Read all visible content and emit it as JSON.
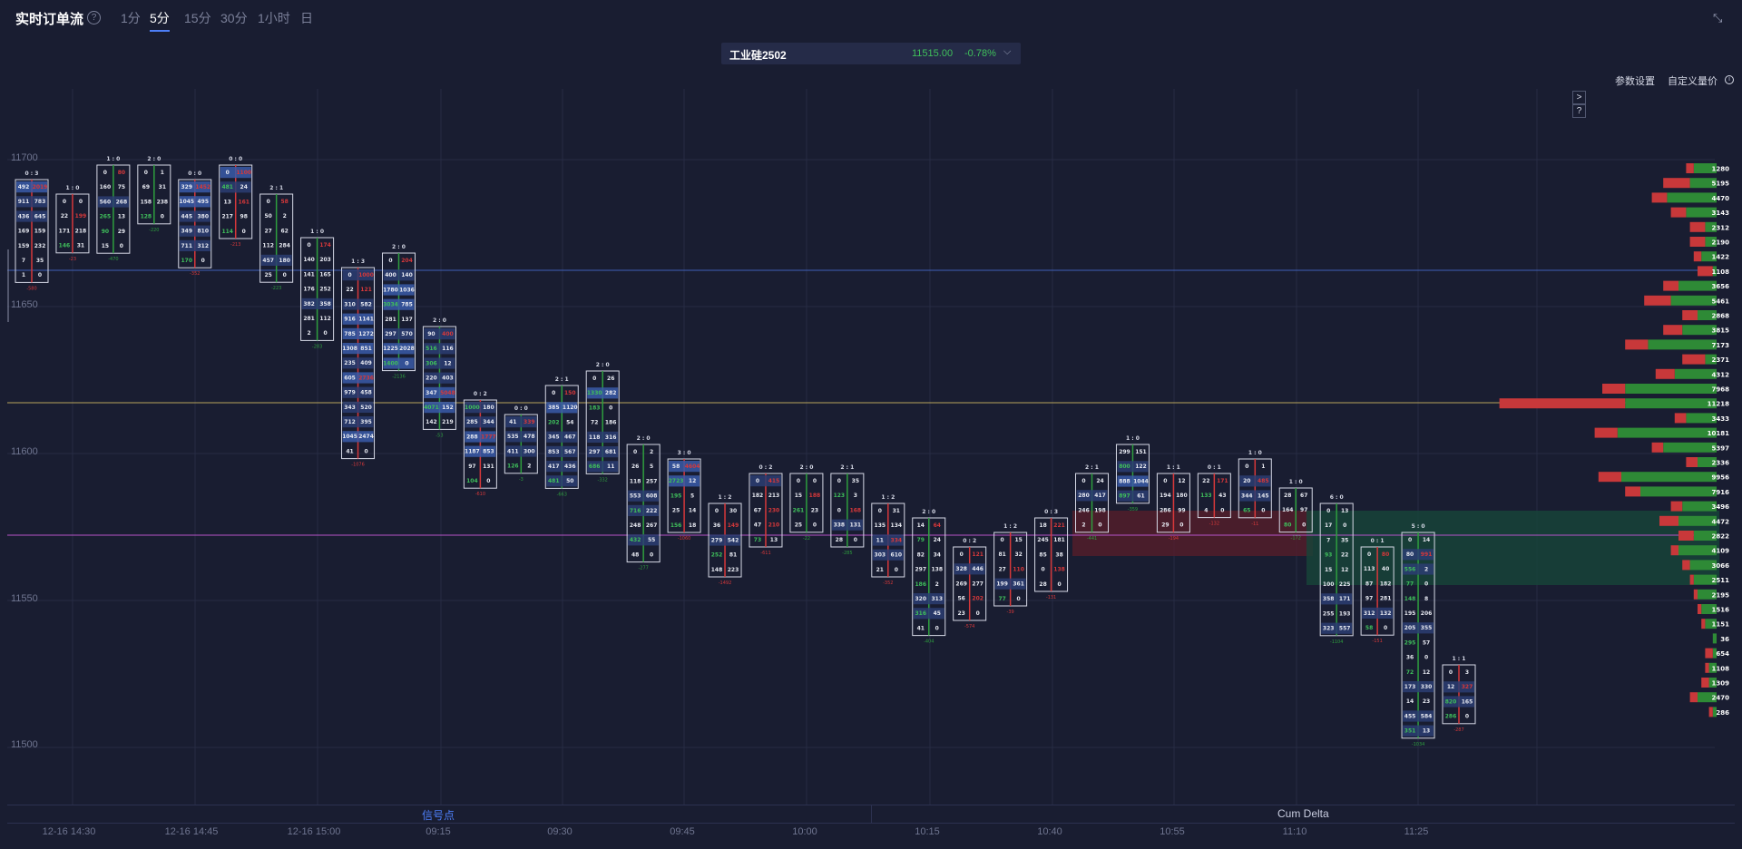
{
  "header": {
    "title": "实时订单流",
    "help_icon": "?",
    "timeframes": [
      "1分",
      "5分",
      "15分",
      "30分",
      "1小时",
      "日"
    ],
    "active_timeframe": "5分"
  },
  "instrument": {
    "name": "工业硅2502",
    "price": "11515.00",
    "change": "-0.78%"
  },
  "settings": {
    "params_label": "参数设置",
    "custom_label": "自定义量价"
  },
  "side_buttons": [
    ">",
    "?"
  ],
  "price_axis": [
    "11700",
    "11650",
    "11600",
    "11550",
    "11500"
  ],
  "time_axis": [
    "12-16 14:30",
    "12-16 14:45",
    "12-16 15:00",
    "09:15",
    "09:30",
    "09:45",
    "10:00",
    "10:15",
    "10:40",
    "10:55",
    "11:10",
    "11:25"
  ],
  "bottom_tabs": {
    "signal": "信号点",
    "cum_delta": "Cum Delta"
  },
  "colors": {
    "bg": "#191d31",
    "up": "#2e9e3e",
    "down": "#d6383a",
    "accent": "#4d7ef7"
  },
  "candles": [
    {
      "ratio": "0 : 3",
      "delta": "-580",
      "d": "down",
      "rows": [
        [
          "492",
          "2019"
        ],
        [
          "911",
          "783"
        ],
        [
          "436",
          "645"
        ],
        [
          "169",
          "159"
        ],
        [
          "159",
          "232"
        ],
        [
          "7",
          "35"
        ],
        [
          "1",
          "0"
        ]
      ]
    },
    {
      "ratio": "1 : 0",
      "delta": "-23",
      "d": "down",
      "rows": [
        [
          "0",
          "0"
        ],
        [
          "22",
          "199"
        ],
        [
          "171",
          "218"
        ],
        [
          "146",
          "31"
        ]
      ]
    },
    {
      "ratio": "1 : 0",
      "delta": "-470",
      "d": "up",
      "rows": [
        [
          "0",
          "80"
        ],
        [
          "160",
          "75"
        ],
        [
          "560",
          "268"
        ],
        [
          "265",
          "13"
        ],
        [
          "90",
          "29"
        ],
        [
          "15",
          "0"
        ]
      ]
    },
    {
      "ratio": "2 : 0",
      "delta": "-220",
      "d": "up",
      "rows": [
        [
          "0",
          "1"
        ],
        [
          "69",
          "31"
        ],
        [
          "158",
          "238"
        ],
        [
          "128",
          "0"
        ]
      ]
    },
    {
      "ratio": "0 : 0",
      "delta": "-352",
      "d": "down",
      "rows": [
        [
          "329",
          "1452"
        ],
        [
          "1045",
          "495"
        ],
        [
          "445",
          "380"
        ],
        [
          "349",
          "810"
        ],
        [
          "711",
          "312"
        ],
        [
          "170",
          "0"
        ]
      ]
    },
    {
      "ratio": "0 : 0",
      "delta": "-213",
      "d": "down",
      "rows": [
        [
          "0",
          "1100"
        ],
        [
          "481",
          "24"
        ],
        [
          "13",
          "161"
        ],
        [
          "217",
          "98"
        ],
        [
          "114",
          "0"
        ]
      ]
    },
    {
      "ratio": "2 : 1",
      "delta": "-223",
      "d": "up",
      "rows": [
        [
          "0",
          "58"
        ],
        [
          "50",
          "2"
        ],
        [
          "27",
          "62"
        ],
        [
          "112",
          "284"
        ],
        [
          "457",
          "180"
        ],
        [
          "25",
          "0"
        ]
      ]
    },
    {
      "ratio": "1 : 0",
      "delta": "-283",
      "d": "up",
      "rows": [
        [
          "0",
          "174"
        ],
        [
          "140",
          "203"
        ],
        [
          "141",
          "165"
        ],
        [
          "176",
          "252"
        ],
        [
          "382",
          "358"
        ],
        [
          "281",
          "112"
        ],
        [
          "2",
          "0"
        ]
      ]
    },
    {
      "ratio": "1 : 3",
      "delta": "-1076",
      "d": "down",
      "rows": [
        [
          "0",
          "1000"
        ],
        [
          "22",
          "121"
        ],
        [
          "310",
          "582"
        ],
        [
          "916",
          "1141"
        ],
        [
          "785",
          "1272"
        ],
        [
          "1308",
          "851"
        ],
        [
          "235",
          "409"
        ],
        [
          "605",
          "2736"
        ],
        [
          "979",
          "458"
        ],
        [
          "343",
          "520"
        ],
        [
          "712",
          "395"
        ],
        [
          "1045",
          "2474"
        ],
        [
          "41",
          "0"
        ]
      ]
    },
    {
      "ratio": "2 : 0",
      "delta": "-2136",
      "d": "up",
      "rows": [
        [
          "0",
          "204"
        ],
        [
          "400",
          "140"
        ],
        [
          "1780",
          "1036"
        ],
        [
          "3034",
          "785"
        ],
        [
          "281",
          "137"
        ],
        [
          "297",
          "570"
        ],
        [
          "1225",
          "2028"
        ],
        [
          "1400",
          "0"
        ]
      ]
    },
    {
      "ratio": "2 : 0",
      "delta": "-53",
      "d": "up",
      "rows": [
        [
          "90",
          "400"
        ],
        [
          "516",
          "116"
        ],
        [
          "306",
          "12"
        ],
        [
          "220",
          "403"
        ],
        [
          "347",
          "5048"
        ],
        [
          "4071",
          "152"
        ],
        [
          "142",
          "219"
        ]
      ]
    },
    {
      "ratio": "0 : 2",
      "delta": "-610",
      "d": "down",
      "rows": [
        [
          "1000",
          "180"
        ],
        [
          "285",
          "344"
        ],
        [
          "288",
          "1777"
        ],
        [
          "1187",
          "853"
        ],
        [
          "97",
          "131"
        ],
        [
          "104",
          "0"
        ]
      ]
    },
    {
      "ratio": "0 : 0",
      "delta": "-3",
      "d": "up",
      "rows": [
        [
          "41",
          "339"
        ],
        [
          "535",
          "478"
        ],
        [
          "411",
          "300"
        ],
        [
          "126",
          "2"
        ]
      ]
    },
    {
      "ratio": "2 : 1",
      "delta": "-663",
      "d": "up",
      "rows": [
        [
          "0",
          "150"
        ],
        [
          "385",
          "1120"
        ],
        [
          "202",
          "54"
        ],
        [
          "345",
          "467"
        ],
        [
          "853",
          "567"
        ],
        [
          "417",
          "436"
        ],
        [
          "481",
          "50"
        ]
      ]
    },
    {
      "ratio": "2 : 0",
      "delta": "-332",
      "d": "up",
      "rows": [
        [
          "0",
          "26"
        ],
        [
          "1330",
          "282"
        ],
        [
          "183",
          "0"
        ],
        [
          "72",
          "186"
        ],
        [
          "118",
          "316"
        ],
        [
          "297",
          "681"
        ],
        [
          "686",
          "11"
        ]
      ]
    },
    {
      "ratio": "2 : 0",
      "delta": "-277",
      "d": "up",
      "rows": [
        [
          "0",
          "2"
        ],
        [
          "26",
          "5"
        ],
        [
          "118",
          "257"
        ],
        [
          "553",
          "608"
        ],
        [
          "716",
          "222"
        ],
        [
          "248",
          "267"
        ],
        [
          "432",
          "55"
        ],
        [
          "48",
          "0"
        ]
      ]
    },
    {
      "ratio": "3 : 0",
      "delta": "-1060",
      "d": "down",
      "rows": [
        [
          "58",
          "4604"
        ],
        [
          "2723",
          "12"
        ],
        [
          "195",
          "5"
        ],
        [
          "25",
          "14"
        ],
        [
          "156",
          "18"
        ]
      ]
    },
    {
      "ratio": "1 : 2",
      "delta": "-1492",
      "d": "down",
      "rows": [
        [
          "0",
          "30"
        ],
        [
          "36",
          "149"
        ],
        [
          "279",
          "542"
        ],
        [
          "252",
          "81"
        ],
        [
          "148",
          "223"
        ]
      ]
    },
    {
      "ratio": "0 : 2",
      "delta": "-611",
      "d": "down",
      "rows": [
        [
          "0",
          "415"
        ],
        [
          "182",
          "213"
        ],
        [
          "67",
          "230"
        ],
        [
          "47",
          "210"
        ],
        [
          "73",
          "13"
        ]
      ]
    },
    {
      "ratio": "2 : 0",
      "delta": "-22",
      "d": "up",
      "rows": [
        [
          "0",
          "0"
        ],
        [
          "15",
          "188"
        ],
        [
          "261",
          "23"
        ],
        [
          "25",
          "0"
        ]
      ]
    },
    {
      "ratio": "2 : 1",
      "delta": "-285",
      "d": "up",
      "rows": [
        [
          "0",
          "35"
        ],
        [
          "123",
          "3"
        ],
        [
          "0",
          "168"
        ],
        [
          "338",
          "131"
        ],
        [
          "28",
          "0"
        ]
      ]
    },
    {
      "ratio": "1 : 2",
      "delta": "-352",
      "d": "down",
      "rows": [
        [
          "0",
          "31"
        ],
        [
          "135",
          "134"
        ],
        [
          "11",
          "334"
        ],
        [
          "303",
          "610"
        ],
        [
          "21",
          "0"
        ]
      ]
    },
    {
      "ratio": "2 : 0",
      "delta": "-404",
      "d": "up",
      "rows": [
        [
          "14",
          "64"
        ],
        [
          "79",
          "24"
        ],
        [
          "82",
          "34"
        ],
        [
          "297",
          "138"
        ],
        [
          "186",
          "2"
        ],
        [
          "320",
          "313"
        ],
        [
          "316",
          "45"
        ],
        [
          "41",
          "0"
        ]
      ]
    },
    {
      "ratio": "0 : 2",
      "delta": "-574",
      "d": "down",
      "rows": [
        [
          "0",
          "121"
        ],
        [
          "328",
          "446"
        ],
        [
          "269",
          "277"
        ],
        [
          "56",
          "202"
        ],
        [
          "23",
          "0"
        ]
      ]
    },
    {
      "ratio": "1 : 2",
      "delta": "-39",
      "d": "down",
      "rows": [
        [
          "0",
          "15"
        ],
        [
          "81",
          "32"
        ],
        [
          "27",
          "110"
        ],
        [
          "199",
          "361"
        ],
        [
          "77",
          "0"
        ]
      ]
    },
    {
      "ratio": "0 : 3",
      "delta": "-131",
      "d": "down",
      "rows": [
        [
          "18",
          "221"
        ],
        [
          "245",
          "181"
        ],
        [
          "85",
          "38"
        ],
        [
          "0",
          "138"
        ],
        [
          "28",
          "0"
        ]
      ]
    },
    {
      "ratio": "2 : 1",
      "delta": "-441",
      "d": "up",
      "rows": [
        [
          "0",
          "24"
        ],
        [
          "280",
          "417"
        ],
        [
          "246",
          "198"
        ],
        [
          "2",
          "0"
        ]
      ]
    },
    {
      "ratio": "1 : 0",
      "delta": "-359",
      "d": "up",
      "rows": [
        [
          "299",
          "151"
        ],
        [
          "800",
          "122"
        ],
        [
          "888",
          "1044"
        ],
        [
          "897",
          "61"
        ]
      ]
    },
    {
      "ratio": "1 : 1",
      "delta": "-194",
      "d": "down",
      "rows": [
        [
          "0",
          "12"
        ],
        [
          "194",
          "180"
        ],
        [
          "286",
          "99"
        ],
        [
          "29",
          "0"
        ]
      ]
    },
    {
      "ratio": "0 : 1",
      "delta": "-132",
      "d": "down",
      "rows": [
        [
          "22",
          "171"
        ],
        [
          "133",
          "43"
        ],
        [
          "4",
          "0"
        ]
      ]
    },
    {
      "ratio": "1 : 0",
      "delta": "-11",
      "d": "down",
      "rows": [
        [
          "0",
          "1"
        ],
        [
          "20",
          "485"
        ],
        [
          "344",
          "145"
        ],
        [
          "65",
          "0"
        ]
      ]
    },
    {
      "ratio": "1 : 0",
      "delta": "-172",
      "d": "up",
      "rows": [
        [
          "28",
          "67"
        ],
        [
          "164",
          "97"
        ],
        [
          "80",
          "0"
        ]
      ]
    },
    {
      "ratio": "6 : 0",
      "delta": "-1104",
      "d": "up",
      "rows": [
        [
          "0",
          "13"
        ],
        [
          "17",
          "0"
        ],
        [
          "7",
          "35"
        ],
        [
          "93",
          "22"
        ],
        [
          "15",
          "12"
        ],
        [
          "100",
          "225"
        ],
        [
          "358",
          "171"
        ],
        [
          "255",
          "193"
        ],
        [
          "323",
          "557"
        ]
      ]
    },
    {
      "ratio": "0 : 1",
      "delta": "-151",
      "d": "down",
      "rows": [
        [
          "0",
          "80"
        ],
        [
          "113",
          "40"
        ],
        [
          "87",
          "182"
        ],
        [
          "97",
          "281"
        ],
        [
          "312",
          "132"
        ],
        [
          "58",
          "0"
        ]
      ]
    },
    {
      "ratio": "5 : 0",
      "delta": "-1034",
      "d": "up",
      "rows": [
        [
          "0",
          "14"
        ],
        [
          "80",
          "991"
        ],
        [
          "556",
          "2"
        ],
        [
          "77",
          "0"
        ],
        [
          "148",
          "8"
        ],
        [
          "195",
          "206"
        ],
        [
          "205",
          "355"
        ],
        [
          "295",
          "57"
        ],
        [
          "36",
          "0"
        ],
        [
          "72",
          "12"
        ],
        [
          "173",
          "330"
        ],
        [
          "14",
          "23"
        ],
        [
          "455",
          "584"
        ],
        [
          "351",
          "13"
        ]
      ]
    },
    {
      "ratio": "1 : 1",
      "delta": "-287",
      "d": "down",
      "rows": [
        [
          "0",
          "3"
        ],
        [
          "12",
          "327"
        ],
        [
          "820",
          "165"
        ],
        [
          "286",
          "0"
        ]
      ]
    }
  ],
  "profile": {
    "values": [
      "1280",
      "5195",
      "4470",
      "3143",
      "2312",
      "2190",
      "1422",
      "1108",
      "3656",
      "5461",
      "2868",
      "3815",
      "7173",
      "2371",
      "4312",
      "7968",
      "11218",
      "3433",
      "10181",
      "5397",
      "2336",
      "9956",
      "7916",
      "3496",
      "4472",
      "2822",
      "4109",
      "3066",
      "2511",
      "2195",
      "1516",
      "1151",
      "36",
      "654",
      "1108",
      "1309",
      "2470",
      "286"
    ],
    "buy": [
      0.06,
      0.07,
      0.13,
      0.08,
      0.03,
      0.03,
      0.04,
      0.01,
      0.1,
      0.12,
      0.05,
      0.09,
      0.18,
      0.03,
      0.11,
      0.24,
      0.24,
      0.08,
      0.26,
      0.14,
      0.05,
      0.25,
      0.2,
      0.09,
      0.1,
      0.06,
      0.1,
      0.07,
      0.06,
      0.05,
      0.04,
      0.03,
      0.01,
      0.01,
      0.02,
      0.02,
      0.05,
      0.01
    ],
    "sell": [
      0.02,
      0.07,
      0.04,
      0.04,
      0.04,
      0.04,
      0.02,
      0.04,
      0.04,
      0.07,
      0.04,
      0.05,
      0.06,
      0.06,
      0.05,
      0.06,
      0.33,
      0.03,
      0.06,
      0.03,
      0.03,
      0.06,
      0.04,
      0.03,
      0.05,
      0.04,
      0.02,
      0.02,
      0.01,
      0.01,
      0.01,
      0.01,
      0.0,
      0.02,
      0.01,
      0.02,
      0.02,
      0.01
    ]
  }
}
